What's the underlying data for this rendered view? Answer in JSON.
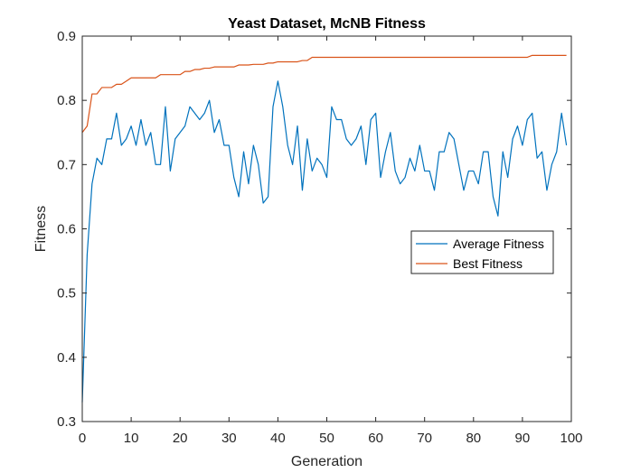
{
  "chart_data": {
    "type": "line",
    "title": "Yeast Dataset, McNB Fitness",
    "xlabel": "Generation",
    "ylabel": "Fitness",
    "xlim": [
      0,
      100
    ],
    "ylim": [
      0.3,
      0.9
    ],
    "xticks": [
      "0",
      "10",
      "20",
      "30",
      "40",
      "50",
      "60",
      "70",
      "80",
      "90",
      "100"
    ],
    "yticks": [
      "0.3",
      "0.4",
      "0.5",
      "0.6",
      "0.7",
      "0.8",
      "0.9"
    ],
    "grid": false,
    "legend_position": "right-middle",
    "series": [
      {
        "name": "Average Fitness",
        "color": "#0072BD",
        "x": [
          0,
          1,
          2,
          3,
          4,
          5,
          6,
          7,
          8,
          9,
          10,
          11,
          12,
          13,
          14,
          15,
          16,
          17,
          18,
          19,
          20,
          21,
          22,
          23,
          24,
          25,
          26,
          27,
          28,
          29,
          30,
          31,
          32,
          33,
          34,
          35,
          36,
          37,
          38,
          39,
          40,
          41,
          42,
          43,
          44,
          45,
          46,
          47,
          48,
          49,
          50,
          51,
          52,
          53,
          54,
          55,
          56,
          57,
          58,
          59,
          60,
          61,
          62,
          63,
          64,
          65,
          66,
          67,
          68,
          69,
          70,
          71,
          72,
          73,
          74,
          75,
          76,
          77,
          78,
          79,
          80,
          81,
          82,
          83,
          84,
          85,
          86,
          87,
          88,
          89,
          90,
          91,
          92,
          93,
          94,
          95,
          96,
          97,
          98,
          99
        ],
        "y": [
          0.33,
          0.56,
          0.67,
          0.71,
          0.7,
          0.74,
          0.74,
          0.78,
          0.73,
          0.74,
          0.76,
          0.73,
          0.77,
          0.73,
          0.75,
          0.7,
          0.7,
          0.79,
          0.69,
          0.74,
          0.75,
          0.76,
          0.79,
          0.78,
          0.77,
          0.78,
          0.8,
          0.75,
          0.77,
          0.73,
          0.73,
          0.68,
          0.65,
          0.72,
          0.67,
          0.73,
          0.7,
          0.64,
          0.65,
          0.79,
          0.83,
          0.79,
          0.73,
          0.7,
          0.76,
          0.66,
          0.74,
          0.69,
          0.71,
          0.7,
          0.68,
          0.79,
          0.77,
          0.77,
          0.74,
          0.73,
          0.74,
          0.76,
          0.7,
          0.77,
          0.78,
          0.68,
          0.72,
          0.75,
          0.69,
          0.67,
          0.68,
          0.71,
          0.69,
          0.73,
          0.69,
          0.69,
          0.66,
          0.72,
          0.72,
          0.75,
          0.74,
          0.7,
          0.66,
          0.69,
          0.69,
          0.67,
          0.72,
          0.72,
          0.65,
          0.62,
          0.72,
          0.68,
          0.74,
          0.76,
          0.73,
          0.77,
          0.78,
          0.71,
          0.72,
          0.66,
          0.7,
          0.72,
          0.78,
          0.73
        ]
      },
      {
        "name": "Best Fitness",
        "color": "#D95319",
        "x": [
          0,
          1,
          2,
          3,
          4,
          5,
          6,
          7,
          8,
          9,
          10,
          11,
          12,
          13,
          14,
          15,
          16,
          17,
          18,
          19,
          20,
          21,
          22,
          23,
          24,
          25,
          26,
          27,
          28,
          29,
          30,
          31,
          32,
          33,
          34,
          35,
          36,
          37,
          38,
          39,
          40,
          41,
          42,
          43,
          44,
          45,
          46,
          47,
          48,
          49,
          50,
          51,
          52,
          53,
          54,
          55,
          56,
          57,
          58,
          59,
          60,
          61,
          62,
          63,
          64,
          65,
          66,
          67,
          68,
          69,
          70,
          71,
          72,
          73,
          74,
          75,
          76,
          77,
          78,
          79,
          80,
          81,
          82,
          83,
          84,
          85,
          86,
          87,
          88,
          89,
          90,
          91,
          92,
          93,
          94,
          95,
          96,
          97,
          98,
          99
        ],
        "y": [
          0.75,
          0.76,
          0.81,
          0.81,
          0.82,
          0.82,
          0.82,
          0.825,
          0.825,
          0.83,
          0.835,
          0.835,
          0.835,
          0.835,
          0.835,
          0.835,
          0.84,
          0.84,
          0.84,
          0.84,
          0.84,
          0.845,
          0.845,
          0.848,
          0.848,
          0.85,
          0.85,
          0.852,
          0.852,
          0.852,
          0.852,
          0.852,
          0.855,
          0.855,
          0.855,
          0.856,
          0.856,
          0.856,
          0.858,
          0.858,
          0.86,
          0.86,
          0.86,
          0.86,
          0.86,
          0.862,
          0.862,
          0.867,
          0.867,
          0.867,
          0.867,
          0.867,
          0.867,
          0.867,
          0.867,
          0.867,
          0.867,
          0.867,
          0.867,
          0.867,
          0.867,
          0.867,
          0.867,
          0.867,
          0.867,
          0.867,
          0.867,
          0.867,
          0.867,
          0.867,
          0.867,
          0.867,
          0.867,
          0.867,
          0.867,
          0.867,
          0.867,
          0.867,
          0.867,
          0.867,
          0.867,
          0.867,
          0.867,
          0.867,
          0.867,
          0.867,
          0.867,
          0.867,
          0.867,
          0.867,
          0.867,
          0.867,
          0.87,
          0.87,
          0.87,
          0.87,
          0.87,
          0.87,
          0.87,
          0.87
        ]
      }
    ]
  }
}
